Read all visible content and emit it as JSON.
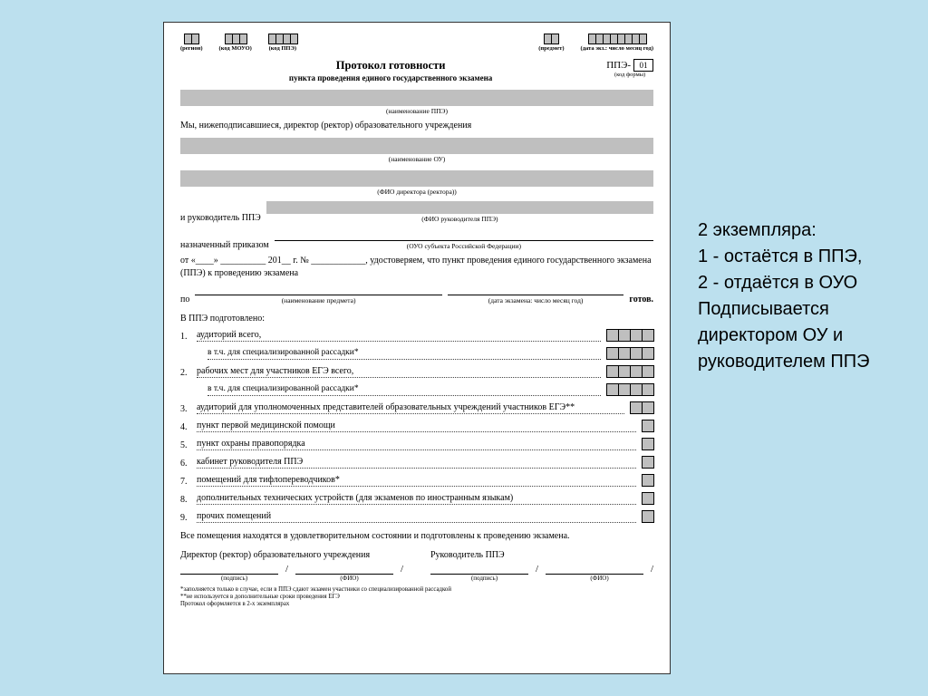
{
  "page_bg": "#bce0ee",
  "sheet_bg": "#ffffff",
  "fill_gray": "#bfbfbf",
  "header_codes": [
    {
      "label": "(регион)",
      "n": 2
    },
    {
      "label": "(код МОУО)",
      "n": 3
    },
    {
      "label": "(код ППЭ)",
      "n": 4
    },
    {
      "label": "(предмет)",
      "n": 2
    },
    {
      "label": "(дата экз.: число месяц год)",
      "n": 8
    }
  ],
  "title1": "Протокол готовности",
  "title2": "пункта проведения единого государственного экзамена",
  "form_prefix": "ППЭ-",
  "form_num": "01",
  "form_code_sub": "(код формы)",
  "cap_ppe": "(наименование ППЭ)",
  "line_intro": "Мы, нижеподписавшиеся, директор (ректор) образовательного учреждения",
  "cap_ou": "(наименование ОУ)",
  "cap_dir": "(ФИО директора (ректора))",
  "line_ruk": "и руководитель ППЭ",
  "cap_ruk": "(ФИО руководителя ППЭ)",
  "line_prikaz": "назначенный приказом",
  "cap_ouo": "(ОУО субъекта Российской Федерации)",
  "para_ot": "от «____» __________ 201__ г. № ____________, удостоверяем, что пункт проведения единого государственного экзамена (ППЭ) к проведению экзамена",
  "po_line_left": "по",
  "po_cap_left": "(наименование предмета)",
  "po_cap_right": "(дата экзамена: число месяц год)",
  "po_tail": "готов.",
  "prep_head": "В ППЭ подготовлено:",
  "items": [
    {
      "n": "1.",
      "t": "аудиторий всего,",
      "boxes": 4
    },
    {
      "n": "",
      "t": "в т.ч. для специализированной рассадки*",
      "boxes": 4,
      "indent": true
    },
    {
      "n": "2.",
      "t": "рабочих мест для участников ЕГЭ всего,",
      "boxes": 4
    },
    {
      "n": "",
      "t": "в т.ч. для специализированной рассадки*",
      "boxes": 4,
      "indent": true
    },
    {
      "n": "3.",
      "t": "аудиторий для уполномоченных представителей образовательных учреждений участников ЕГЭ**",
      "boxes": 2
    },
    {
      "n": "4.",
      "t": "пункт первой медицинской помощи",
      "boxes": 1
    },
    {
      "n": "5.",
      "t": "пункт охраны правопорядка",
      "boxes": 1
    },
    {
      "n": "6.",
      "t": "кабинет руководителя ППЭ",
      "boxes": 1
    },
    {
      "n": "7.",
      "t": "помещений для тифлопереводчиков*",
      "boxes": 1
    },
    {
      "n": "8.",
      "t": "дополнительных технических устройств (для экзаменов по иностранным языкам)",
      "boxes": 1
    },
    {
      "n": "9.",
      "t": "прочих помещений",
      "boxes": 1
    }
  ],
  "closing": "Все помещения находятся в удовлетворительном состоянии и подготовлены к проведению экзамена.",
  "sig_left": "Директор (ректор) образовательного учреждения",
  "sig_right": "Руководитель ППЭ",
  "sig_sub_a": "(подпись)",
  "sig_sub_b": "(ФИО)",
  "foot1": "*заполняется только в случае, если в ППЭ сдают экзамен участники со специализированной рассадкой",
  "foot2": "**не используется в дополнительные сроки проведения ЕГЭ",
  "foot3": "Протокол оформляется в 2-х экземплярах",
  "annotation": {
    "l1": "2 экземпляра:",
    "l2": "1 - остаётся в ППЭ,",
    "l3": "2 - отдаётся в ОУО",
    "l4": "Подписывается",
    "l5": "директором ОУ и",
    "l6": " руководителем ППЭ"
  }
}
